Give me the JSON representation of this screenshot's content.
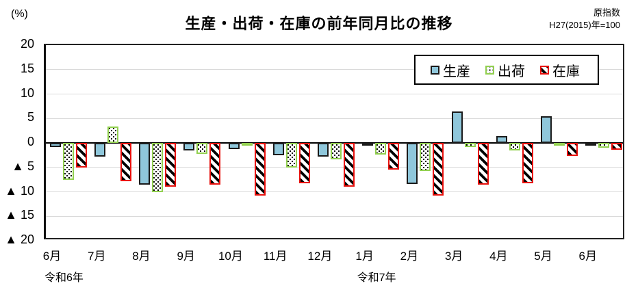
{
  "percent_label": "(%)",
  "title": "生産・出荷・在庫の前年同月比の推移",
  "note": {
    "line1": "原指数",
    "line2": "H27(2015)年=100"
  },
  "legend": {
    "production": "生産",
    "shipment": "出荷",
    "inventory": "在庫"
  },
  "colors": {
    "production_fill": "#8fc7db",
    "shipment_border": "#92d050",
    "inventory_border": "#e8100c",
    "bar_outline": "#1a1a1a",
    "gridline": "#d9d9d9",
    "axis": "#000000"
  },
  "chart_data": {
    "type": "bar",
    "title": "生産・出荷・在庫の前年同月比の推移",
    "subtitle": "原指数 H27(2015)年=100",
    "xlabel": "",
    "ylabel": "(%)",
    "ylim": [
      -20,
      20
    ],
    "ytick_step": 5,
    "y_tick_labels": [
      "20",
      "15",
      "10",
      "5",
      "0",
      "▲ 5",
      "▲ 10",
      "▲ 15",
      "▲ 20"
    ],
    "grid": true,
    "negative_notation": "black-triangle",
    "legend_position": "top-right-inside",
    "categories": [
      "6月",
      "7月",
      "8月",
      "9月",
      "10月",
      "11月",
      "12月",
      "1月",
      "2月",
      "3月",
      "4月",
      "5月",
      "6月"
    ],
    "era_labels": [
      {
        "text": "令和6年",
        "at_index": 0
      },
      {
        "text": "令和7年",
        "at_index": 7
      }
    ],
    "series": [
      {
        "name": "生産",
        "key": "production",
        "values": [
          -0.8,
          -2.8,
          -8.6,
          -1.5,
          -1.3,
          -2.5,
          -2.8,
          -0.4,
          -8.4,
          6.5,
          1.4,
          5.4,
          -0.5
        ]
      },
      {
        "name": "出荷",
        "key": "shipment",
        "values": [
          -7.6,
          3.4,
          -10.0,
          -2.2,
          -0.3,
          -5.0,
          -3.3,
          -2.4,
          -5.8,
          -0.8,
          -1.5,
          -0.5,
          -1.0
        ]
      },
      {
        "name": "在庫",
        "key": "inventory",
        "values": [
          -5.0,
          -7.9,
          -9.0,
          -8.5,
          -10.7,
          -8.3,
          -9.0,
          -5.4,
          -10.7,
          -8.5,
          -8.2,
          -2.7,
          -1.4
        ]
      }
    ]
  }
}
